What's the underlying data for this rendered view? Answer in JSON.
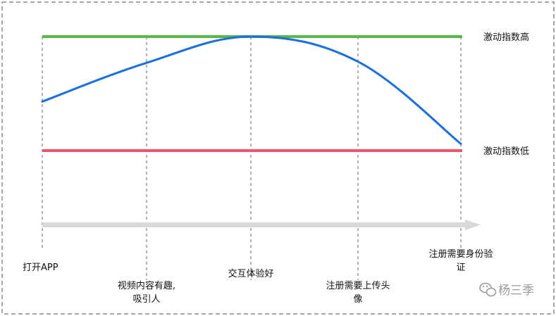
{
  "diagram": {
    "high_label": "激动指数高",
    "low_label": "激动指数低",
    "steps": [
      {
        "lines": [
          "打开APP"
        ]
      },
      {
        "lines": [
          "视频内容有趣,",
          "吸引人"
        ]
      },
      {
        "lines": [
          "交互体验好"
        ]
      },
      {
        "lines": [
          "注册需要上传头",
          "像"
        ]
      },
      {
        "lines": [
          "注册需要身份验",
          "证"
        ]
      }
    ],
    "curve_levels": [
      0.43,
      0.77,
      1.0,
      0.78,
      0.06
    ],
    "watermark": "杨三季"
  },
  "colors": {
    "high_line": "#58b947",
    "low_line": "#f2526a",
    "curve": "#1b6fe0",
    "axis_arrow": "#d9d9d9",
    "guides": "#999999",
    "border": "#888888"
  }
}
